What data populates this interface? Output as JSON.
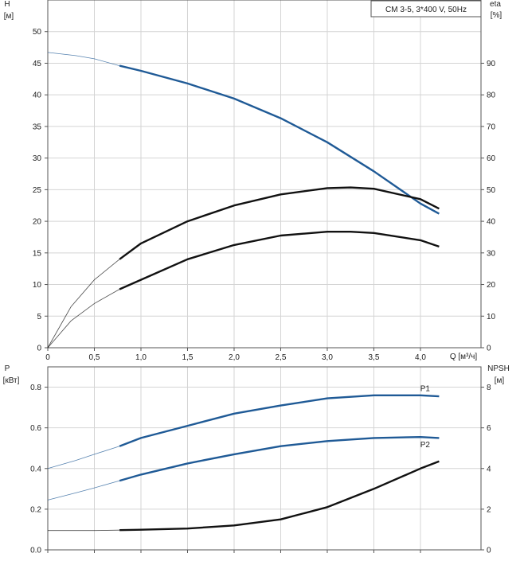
{
  "colors": {
    "blue": "#1f5a96",
    "black": "#111111",
    "thin": "#888888",
    "grid": "#d4d4d4"
  },
  "chart_data": [
    {
      "type": "line",
      "title": "CM 3-5, 3*400 V, 50Hz",
      "y_label_top": "H",
      "y_label_unit": "[м]",
      "y2_label_top": "eta",
      "y2_label_unit": "[%]",
      "x_label": "Q [м³/ч]",
      "xlim": [
        0,
        4.65
      ],
      "ylim": [
        0,
        55
      ],
      "y2lim": [
        0,
        110
      ],
      "x_ticks": [
        {
          "v": 0,
          "label": "0"
        },
        {
          "v": 0.5,
          "label": "0,5"
        },
        {
          "v": 1.0,
          "label": "1,0"
        },
        {
          "v": 1.5,
          "label": "1,5"
        },
        {
          "v": 2.0,
          "label": "2,0"
        },
        {
          "v": 2.5,
          "label": "2,5"
        },
        {
          "v": 3.0,
          "label": "3,0"
        },
        {
          "v": 3.5,
          "label": "3,5"
        },
        {
          "v": 4.0,
          "label": "4,0"
        }
      ],
      "y_ticks": [
        {
          "v": 0,
          "label": "0"
        },
        {
          "v": 5,
          "label": "5"
        },
        {
          "v": 10,
          "label": "10"
        },
        {
          "v": 15,
          "label": "15"
        },
        {
          "v": 20,
          "label": "20"
        },
        {
          "v": 25,
          "label": "25"
        },
        {
          "v": 30,
          "label": "30"
        },
        {
          "v": 35,
          "label": "35"
        },
        {
          "v": 40,
          "label": "40"
        },
        {
          "v": 45,
          "label": "45"
        },
        {
          "v": 50,
          "label": "50"
        }
      ],
      "y2_ticks": [
        {
          "v": 0,
          "label": "0"
        },
        {
          "v": 10,
          "label": "10"
        },
        {
          "v": 20,
          "label": "20"
        },
        {
          "v": 30,
          "label": "30"
        },
        {
          "v": 40,
          "label": "40"
        },
        {
          "v": 50,
          "label": "50"
        },
        {
          "v": 60,
          "label": "60"
        },
        {
          "v": 70,
          "label": "70"
        },
        {
          "v": 80,
          "label": "80"
        },
        {
          "v": 90,
          "label": "90"
        }
      ],
      "grid": true,
      "series": [
        {
          "id": "head-curve",
          "axis": "y",
          "color": "#1f5a96",
          "x": [
            0,
            0.3,
            0.5,
            0.77,
            1.0,
            1.5,
            2.0,
            2.5,
            3.0,
            3.5,
            4.0,
            4.2
          ],
          "y": [
            46.7,
            46.2,
            45.7,
            44.6,
            43.8,
            41.8,
            39.4,
            36.3,
            32.5,
            27.9,
            22.8,
            21.2
          ],
          "solid_from": 0.77
        },
        {
          "id": "efficiency-curve",
          "axis": "y2",
          "color": "#111111",
          "x": [
            0,
            0.25,
            0.5,
            0.77,
            1.0,
            1.5,
            2.0,
            2.5,
            3.0,
            3.25,
            3.5,
            4.0,
            4.2
          ],
          "y": [
            0,
            13,
            21.5,
            28,
            33,
            40,
            45,
            48.5,
            50.5,
            50.7,
            50.3,
            47,
            44
          ],
          "solid_from": 0.77
        },
        {
          "id": "pump-efficiency-curve",
          "axis": "y2",
          "color": "#111111",
          "x": [
            0,
            0.25,
            0.5,
            0.77,
            1.0,
            1.5,
            2.0,
            2.5,
            3.0,
            3.25,
            3.5,
            4.0,
            4.2
          ],
          "y": [
            0,
            8.5,
            14,
            18.5,
            21.5,
            28,
            32.5,
            35.5,
            36.7,
            36.7,
            36.3,
            34,
            32
          ],
          "solid_from": 0.77
        }
      ]
    },
    {
      "type": "line",
      "y_label_top": "P",
      "y_label_unit": "[кВт]",
      "y2_label_top": "NPSH",
      "y2_label_unit": "[м]",
      "xlim": [
        0,
        4.65
      ],
      "ylim": [
        0,
        0.9
      ],
      "y2lim": [
        0,
        9
      ],
      "y_ticks": [
        {
          "v": 0,
          "label": "0.0"
        },
        {
          "v": 0.2,
          "label": "0.2"
        },
        {
          "v": 0.4,
          "label": "0.4"
        },
        {
          "v": 0.6,
          "label": "0.6"
        },
        {
          "v": 0.8,
          "label": "0.8"
        }
      ],
      "y2_ticks": [
        {
          "v": 0,
          "label": "0"
        },
        {
          "v": 2,
          "label": "2"
        },
        {
          "v": 4,
          "label": "4"
        },
        {
          "v": 6,
          "label": "6"
        },
        {
          "v": 8,
          "label": "8"
        }
      ],
      "grid": true,
      "series": [
        {
          "id": "p1-curve",
          "name": "P1",
          "axis": "y",
          "color": "#1f5a96",
          "x": [
            0,
            0.3,
            0.5,
            0.77,
            1.0,
            1.5,
            2.0,
            2.5,
            3.0,
            3.5,
            4.0,
            4.2
          ],
          "y": [
            0.4,
            0.44,
            0.47,
            0.51,
            0.55,
            0.61,
            0.67,
            0.71,
            0.745,
            0.76,
            0.76,
            0.755
          ],
          "solid_from": 0.77
        },
        {
          "id": "p2-curve",
          "name": "P2",
          "axis": "y",
          "color": "#1f5a96",
          "x": [
            0,
            0.3,
            0.5,
            0.77,
            1.0,
            1.5,
            2.0,
            2.5,
            3.0,
            3.5,
            4.0,
            4.2
          ],
          "y": [
            0.245,
            0.28,
            0.305,
            0.34,
            0.37,
            0.425,
            0.47,
            0.51,
            0.535,
            0.55,
            0.555,
            0.55
          ],
          "solid_from": 0.77
        },
        {
          "id": "npsh-curve",
          "axis": "y2",
          "color": "#111111",
          "x": [
            0,
            0.5,
            0.77,
            1.0,
            1.5,
            2.0,
            2.5,
            3.0,
            3.5,
            4.0,
            4.2
          ],
          "y": [
            0.95,
            0.95,
            0.97,
            0.99,
            1.05,
            1.2,
            1.5,
            2.1,
            3.0,
            4.0,
            4.35
          ],
          "solid_from": 0.77
        }
      ]
    }
  ]
}
